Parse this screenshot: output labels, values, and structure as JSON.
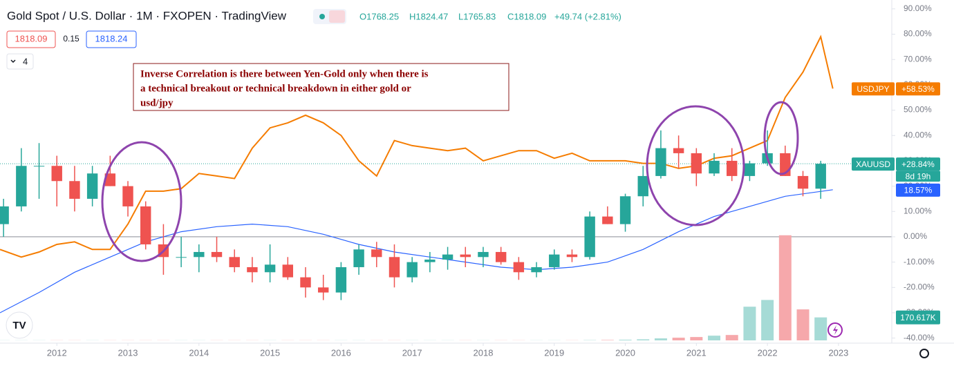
{
  "chart_data": {
    "type": "candlestick",
    "title": "Gold Spot / U.S. Dollar · 1M · FXOPEN · TradingView",
    "ohlc_header": {
      "open": "O1768.25",
      "high": "H1824.47",
      "low": "L1765.83",
      "close": "C1818.09",
      "change": "+49.74 (+2.81%)"
    },
    "bid": "1818.09",
    "spread": "0.15",
    "ask": "1818.24",
    "indicators": "4",
    "annotation": [
      "Inverse Correlation is there between Yen-Gold only when there is",
      "a technical breakout or technical breakdown in either gold or",
      "usd/jpy"
    ],
    "name": "XAUUSD",
    "last_label": "+28.84%",
    "countdown": "8d 19h",
    "last": 28.84,
    "up_color": "#26a69a",
    "down_color": "#ef5350",
    "x": [
      2011.25,
      2011.5,
      2011.75,
      2012.0,
      2012.25,
      2012.5,
      2012.75,
      2013.0,
      2013.25,
      2013.5,
      2013.75,
      2014.0,
      2014.25,
      2014.5,
      2014.75,
      2015.0,
      2015.25,
      2015.5,
      2015.75,
      2016.0,
      2016.25,
      2016.5,
      2016.75,
      2017.0,
      2017.25,
      2017.5,
      2017.75,
      2018.0,
      2018.25,
      2018.5,
      2018.75,
      2019.0,
      2019.25,
      2019.5,
      2019.75,
      2020.0,
      2020.25,
      2020.5,
      2020.75,
      2021.0,
      2021.25,
      2021.5,
      2021.75,
      2022.0,
      2022.25,
      2022.5,
      2022.75
    ],
    "open": [
      5,
      12,
      28,
      28,
      22,
      15,
      25,
      20,
      12,
      -3,
      -8,
      -8,
      -6,
      -8,
      -12,
      -14,
      -11,
      -16,
      -20,
      -22,
      -12,
      -5,
      -8,
      -16,
      -10,
      -9,
      -7,
      -8,
      -6,
      -10,
      -14,
      -12,
      -7,
      -8,
      8,
      5,
      16,
      24,
      35,
      33,
      25,
      30,
      24,
      29,
      33,
      24,
      19
    ],
    "high": [
      15,
      35,
      37,
      32,
      28,
      28,
      32,
      22,
      14,
      5,
      0,
      -3,
      0,
      -5,
      -8,
      -3,
      -8,
      -12,
      -15,
      -10,
      -3,
      -2,
      -3,
      -8,
      -6,
      -4,
      -4,
      -4,
      -4,
      -8,
      -10,
      -5,
      -5,
      10,
      12,
      17,
      28,
      42,
      40,
      35,
      33,
      35,
      30,
      42,
      36,
      26,
      30
    ],
    "low": [
      0,
      10,
      15,
      12,
      10,
      12,
      20,
      8,
      -5,
      -15,
      -12,
      -14,
      -10,
      -14,
      -18,
      -18,
      -17,
      -24,
      -25,
      -25,
      -15,
      -12,
      -20,
      -18,
      -14,
      -13,
      -12,
      -12,
      -11,
      -17,
      -16,
      -13,
      -10,
      -9,
      5,
      2,
      12,
      23,
      27,
      20,
      24,
      22,
      22,
      28,
      24,
      16,
      15
    ],
    "close": [
      12,
      28,
      28,
      22,
      15,
      25,
      20,
      12,
      -3,
      -8,
      -8,
      -6,
      -8,
      -12,
      -14,
      -11,
      -16,
      -20,
      -22,
      -12,
      -5,
      -8,
      -16,
      -10,
      -9,
      -7,
      -8,
      -6,
      -10,
      -14,
      -12,
      -7,
      -8,
      8,
      5,
      16,
      24,
      35,
      33,
      25,
      30,
      24,
      29,
      33,
      24,
      19,
      28.84
    ],
    "lines": [
      {
        "name": "USDJPY",
        "color": "#f57c00",
        "last_label": "+58.53%",
        "x": [
          2011.2,
          2011.5,
          2011.75,
          2012.0,
          2012.25,
          2012.5,
          2012.75,
          2013.0,
          2013.25,
          2013.5,
          2013.75,
          2014.0,
          2014.25,
          2014.5,
          2014.75,
          2015.0,
          2015.25,
          2015.5,
          2015.75,
          2016.0,
          2016.25,
          2016.5,
          2016.75,
          2017.0,
          2017.25,
          2017.5,
          2017.75,
          2018.0,
          2018.25,
          2018.5,
          2018.75,
          2019.0,
          2019.25,
          2019.5,
          2019.75,
          2020.0,
          2020.25,
          2020.5,
          2020.75,
          2021.0,
          2021.25,
          2021.5,
          2021.75,
          2022.0,
          2022.25,
          2022.5,
          2022.75,
          2022.92
        ],
        "values": [
          -5,
          -8,
          -6,
          -3,
          -2,
          -5,
          -5,
          5,
          18,
          18,
          19,
          25,
          24,
          23,
          35,
          43,
          45,
          48,
          45,
          40,
          30,
          24,
          38,
          36,
          35,
          34,
          35,
          30,
          32,
          34,
          34,
          31,
          33,
          30,
          30,
          30,
          29,
          29,
          27,
          28,
          31,
          32,
          35,
          38,
          55,
          65,
          79,
          58.53
        ]
      },
      {
        "color": "#2962ff",
        "last_label": "18.57%",
        "x": [
          2011.2,
          2011.75,
          2012.25,
          2012.75,
          2013.25,
          2013.75,
          2014.25,
          2014.75,
          2015.25,
          2015.75,
          2016.25,
          2016.75,
          2017.25,
          2017.75,
          2018.25,
          2018.75,
          2019.25,
          2019.75,
          2020.25,
          2020.75,
          2021.25,
          2021.75,
          2022.25,
          2022.92
        ],
        "values": [
          -30,
          -22,
          -14,
          -8,
          -2,
          2,
          4,
          5,
          4,
          1,
          -3,
          -6,
          -8,
          -10,
          -12,
          -13,
          -12,
          -10,
          -5,
          2,
          8,
          12,
          16,
          18.57
        ]
      }
    ],
    "volume": {
      "values": [
        1,
        1,
        1,
        1,
        1,
        1,
        1,
        1,
        1,
        1,
        1,
        1,
        1,
        1,
        1,
        1,
        1,
        1,
        1,
        1,
        1,
        1,
        1,
        1,
        1,
        1,
        1,
        1,
        1,
        1,
        1,
        1,
        1,
        2,
        3,
        5,
        8,
        15,
        20,
        25,
        35,
        40,
        250,
        300,
        780,
        230,
        170.617
      ],
      "last_label": "170.617K",
      "ylim": [
        0,
        1040
      ]
    },
    "xlim": [
      2011.2,
      2023.75
    ],
    "ylim": [
      -42,
      93.5
    ],
    "xticks": [
      2012,
      2013,
      2014,
      2015,
      2016,
      2017,
      2018,
      2019,
      2020,
      2021,
      2022,
      2023
    ],
    "yticks": [
      {
        "value": 90,
        "label": "90.00%"
      },
      {
        "value": 80,
        "label": "80.00%"
      },
      {
        "value": 70,
        "label": "70.00%"
      },
      {
        "value": 60,
        "label": "60.00%"
      },
      {
        "value": 50,
        "label": "50.00%"
      },
      {
        "value": 40,
        "label": "40.00%"
      },
      {
        "value": 30,
        "label": "30.00%"
      },
      {
        "value": 20,
        "label": "20.00%"
      },
      {
        "value": 10,
        "label": "10.00%"
      },
      {
        "value": 0,
        "label": "0.00%"
      },
      {
        "value": -10,
        "label": "-10.00%"
      },
      {
        "value": -20,
        "label": "-20.00%"
      },
      {
        "value": -30,
        "label": "-30.00%"
      },
      {
        "value": -40,
        "label": "-40.00%"
      }
    ]
  }
}
